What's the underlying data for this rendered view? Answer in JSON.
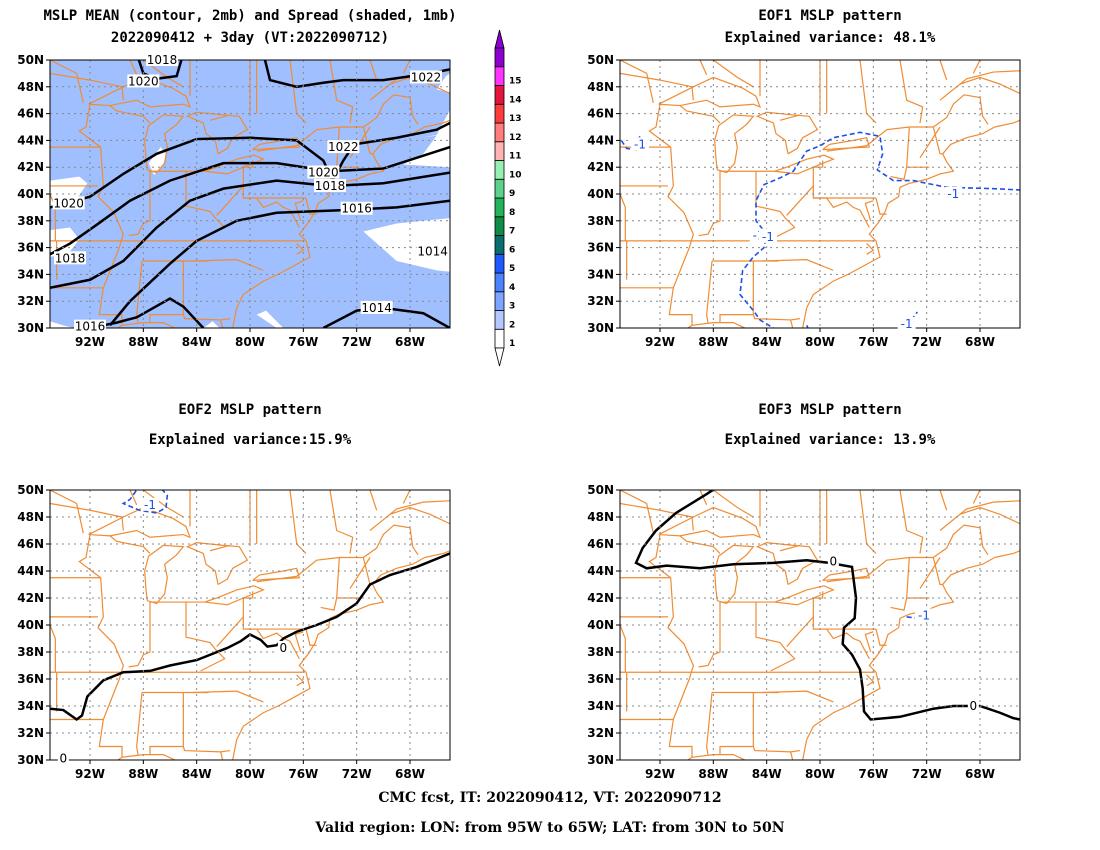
{
  "panels": [
    {
      "id": "p1",
      "title1": "MSLP MEAN (contour, 2mb) and Spread (shaded, 1mb)",
      "title2": "2022090412 + 3day (VT:2022090712)"
    },
    {
      "id": "p2",
      "title1": "EOF1 MSLP pattern",
      "title2": "Explained variance: 48.1%"
    },
    {
      "id": "p3",
      "title1": "EOF2 MSLP pattern",
      "title2": "Explained variance:15.9%"
    },
    {
      "id": "p4",
      "title1": "EOF3 MSLP pattern",
      "title2": "Explained variance: 13.9%"
    }
  ],
  "axes": {
    "lat_ticks": [
      "30N",
      "32N",
      "34N",
      "36N",
      "38N",
      "40N",
      "42N",
      "44N",
      "46N",
      "48N",
      "50N"
    ],
    "lon_ticks": [
      "92W",
      "88W",
      "84W",
      "80W",
      "76W",
      "72W",
      "68W"
    ],
    "lon_range": [
      -95,
      -65
    ],
    "lat_range": [
      30,
      50
    ]
  },
  "colorbar": {
    "labels": [
      "1",
      "2",
      "3",
      "4",
      "5",
      "6",
      "7",
      "8",
      "9",
      "10",
      "11",
      "12",
      "13",
      "14",
      "15"
    ],
    "colors": [
      "#ffffff",
      "#b4c8ff",
      "#7da4ff",
      "#4b82ff",
      "#1e5aff",
      "#0a6e6e",
      "#0f8c46",
      "#23b45a",
      "#5ad28c",
      "#96f0b4",
      "#ffb4b4",
      "#ff7d7d",
      "#ff3c3c",
      "#e6143c",
      "#ff32ff",
      "#8c00d2"
    ]
  },
  "contour_labels": {
    "p1": [
      "1018",
      "1020",
      "1022",
      "1022",
      "1020",
      "1018",
      "1016",
      "1020",
      "1018",
      "1014",
      "1014",
      "1016"
    ],
    "p2": [
      "-1",
      "-1",
      "-1",
      "-1",
      "-1"
    ],
    "p3": [
      "-1",
      "0",
      "0"
    ],
    "p4": [
      "0",
      "0",
      "-1"
    ]
  },
  "footer": {
    "line1": "CMC fcst, IT: 2022090412, VT: 2022090712",
    "line2": "Valid region: LON: from 95W to 65W; LAT: from 30N to 50N"
  }
}
